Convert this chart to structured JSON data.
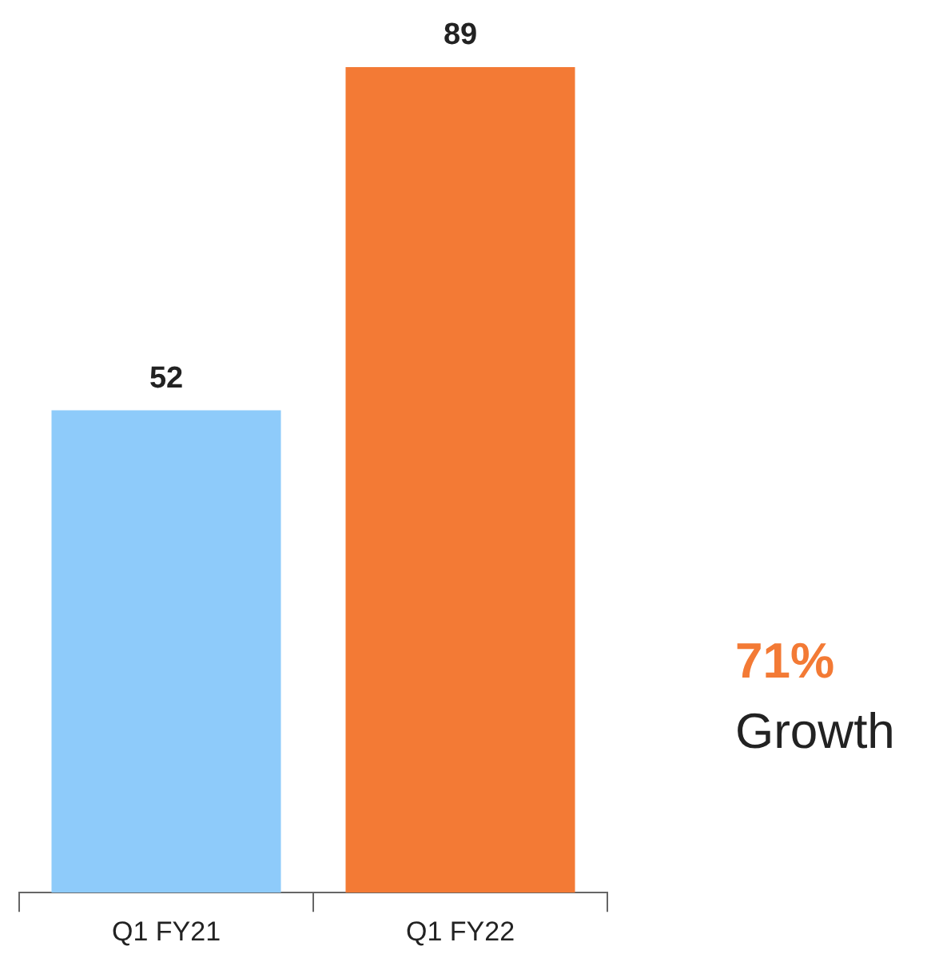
{
  "chart_data": {
    "type": "bar",
    "categories": [
      "Q1 FY21",
      "Q1 FY22"
    ],
    "values": [
      52,
      89
    ],
    "colors": [
      "#8ecbfa",
      "#f37a35"
    ],
    "data_labels": true,
    "grid": false,
    "legend": false,
    "annotations": [
      "71%",
      "Growth"
    ]
  }
}
